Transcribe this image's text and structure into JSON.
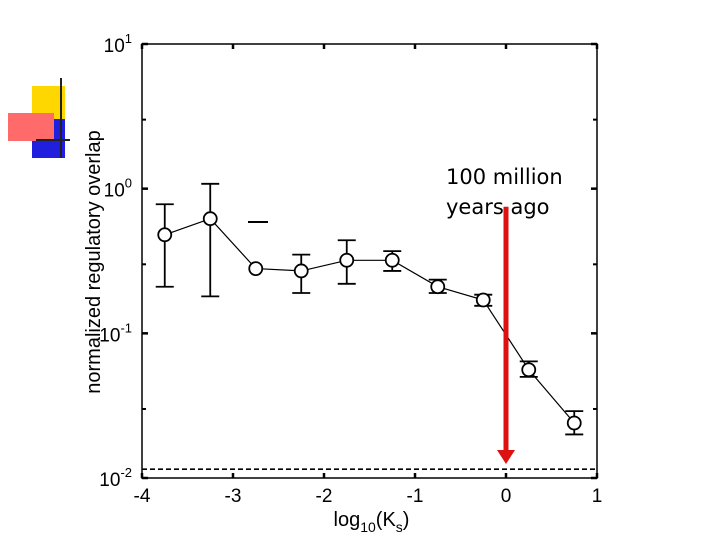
{
  "chart_data": {
    "type": "line",
    "xscale": "linear",
    "yscale": "log",
    "xlim": [
      -4,
      1
    ],
    "ylim": [
      0.01,
      10
    ],
    "xticks": [
      -4,
      -3,
      -2,
      -1,
      0,
      1
    ],
    "xtick_labels": [
      "-4",
      "-3",
      "-2",
      "-1",
      "0",
      "1"
    ],
    "ytick_exponents": [
      -2,
      -1,
      0,
      1
    ],
    "ytick_base": "10",
    "xlabel": {
      "pre": "log",
      "sub": "10",
      "mid": "(K",
      "sub2": "s",
      "post": ")"
    },
    "ylabel": "normalized regulatory overlap",
    "series": [
      {
        "name": "overlap",
        "marker": "open-circle",
        "x": [
          -3.75,
          -3.25,
          -2.75,
          -2.25,
          -1.75,
          -1.25,
          -0.75,
          -0.25,
          0.25,
          0.75
        ],
        "y": [
          0.48,
          0.62,
          0.28,
          0.27,
          0.32,
          0.32,
          0.21,
          0.17,
          0.056,
          0.024
        ],
        "err_low": [
          0.21,
          0.18,
          null,
          0.19,
          0.22,
          0.27,
          0.19,
          0.155,
          0.05,
          0.02
        ],
        "err_high": [
          0.78,
          1.08,
          null,
          0.35,
          0.44,
          0.37,
          0.235,
          0.185,
          0.064,
          0.029
        ]
      }
    ],
    "baseline": {
      "y": 0.0115,
      "style": "dashed"
    },
    "annotation": {
      "lines": [
        "100 million",
        "years ago"
      ],
      "arrow_x": 0,
      "arrow_from_y": 0.75,
      "arrow_to_y": 0.0125,
      "color": "#dd1111"
    }
  },
  "decoration": {
    "yellow": "#ffd700",
    "blue": "#1f1fdd",
    "red": "#ff6a6a",
    "line": "#222222"
  }
}
